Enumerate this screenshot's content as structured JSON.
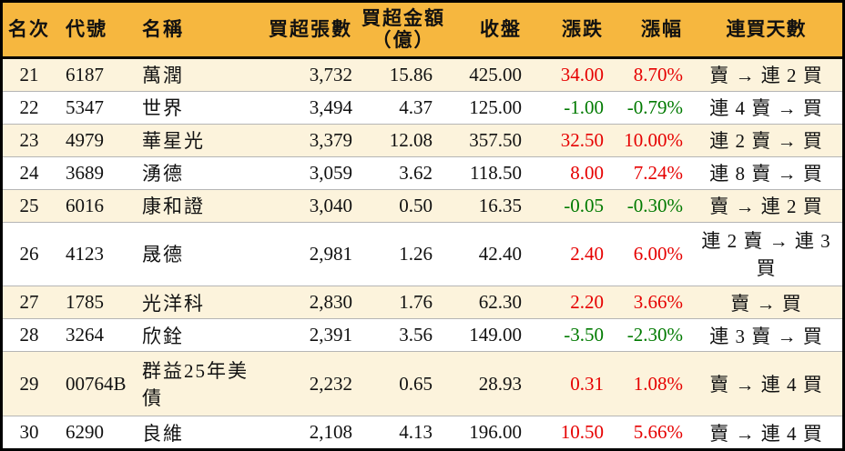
{
  "chart_data": {
    "type": "table",
    "title": "",
    "columns": [
      {
        "key": "rank",
        "label": "名次",
        "label2": ""
      },
      {
        "key": "code",
        "label": "代號",
        "label2": ""
      },
      {
        "key": "name",
        "label": "名稱",
        "label2": ""
      },
      {
        "key": "volume",
        "label": "買超張數",
        "label2": ""
      },
      {
        "key": "amount",
        "label": "買超金額",
        "label2": "（億）"
      },
      {
        "key": "close",
        "label": "收盤",
        "label2": ""
      },
      {
        "key": "change",
        "label": "漲跌",
        "label2": ""
      },
      {
        "key": "change_pct",
        "label": "漲幅",
        "label2": ""
      },
      {
        "key": "streak",
        "label": "連買天數",
        "label2": ""
      }
    ],
    "rows": [
      {
        "rank": "21",
        "code": "6187",
        "name": "萬潤",
        "volume": "3,732",
        "amount": "15.86",
        "close": "425.00",
        "change": "34.00",
        "change_pct": "8.70%",
        "streak": "賣 → 連 2 買",
        "trend": "up"
      },
      {
        "rank": "22",
        "code": "5347",
        "name": "世界",
        "volume": "3,494",
        "amount": "4.37",
        "close": "125.00",
        "change": "-1.00",
        "change_pct": "-0.79%",
        "streak": "連 4 賣 → 買",
        "trend": "down"
      },
      {
        "rank": "23",
        "code": "4979",
        "name": "華星光",
        "volume": "3,379",
        "amount": "12.08",
        "close": "357.50",
        "change": "32.50",
        "change_pct": "10.00%",
        "streak": "連 2 賣 → 買",
        "trend": "up"
      },
      {
        "rank": "24",
        "code": "3689",
        "name": "湧德",
        "volume": "3,059",
        "amount": "3.62",
        "close": "118.50",
        "change": "8.00",
        "change_pct": "7.24%",
        "streak": "連 8 賣 → 買",
        "trend": "up"
      },
      {
        "rank": "25",
        "code": "6016",
        "name": "康和證",
        "volume": "3,040",
        "amount": "0.50",
        "close": "16.35",
        "change": "-0.05",
        "change_pct": "-0.30%",
        "streak": "賣 → 連 2 買",
        "trend": "down"
      },
      {
        "rank": "26",
        "code": "4123",
        "name": "晟德",
        "volume": "2,981",
        "amount": "1.26",
        "close": "42.40",
        "change": "2.40",
        "change_pct": "6.00%",
        "streak": "連 2 賣 → 連 3 買",
        "trend": "up"
      },
      {
        "rank": "27",
        "code": "1785",
        "name": "光洋科",
        "volume": "2,830",
        "amount": "1.76",
        "close": "62.30",
        "change": "2.20",
        "change_pct": "3.66%",
        "streak": "賣 → 買",
        "trend": "up"
      },
      {
        "rank": "28",
        "code": "3264",
        "name": "欣銓",
        "volume": "2,391",
        "amount": "3.56",
        "close": "149.00",
        "change": "-3.50",
        "change_pct": "-2.30%",
        "streak": "連 3 賣 → 買",
        "trend": "down"
      },
      {
        "rank": "29",
        "code": "00764B",
        "name": "群益25年美債",
        "volume": "2,232",
        "amount": "0.65",
        "close": "28.93",
        "change": "0.31",
        "change_pct": "1.08%",
        "streak": "賣 → 連 4 買",
        "trend": "up"
      },
      {
        "rank": "30",
        "code": "6290",
        "name": "良維",
        "volume": "2,108",
        "amount": "4.13",
        "close": "196.00",
        "change": "10.50",
        "change_pct": "5.66%",
        "streak": "賣 → 連 4 買",
        "trend": "up"
      }
    ]
  },
  "colors": {
    "up": "#e60000",
    "down": "#007a00",
    "header_bg": "#f6b73f",
    "row_alt_bg": "#fcf3dc",
    "grid_line": "#b5b5b5",
    "frame": "#000000"
  }
}
